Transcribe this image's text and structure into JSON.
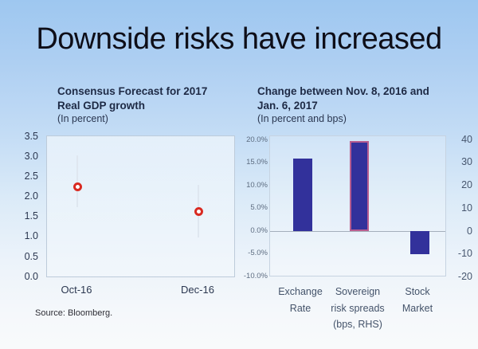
{
  "slide": {
    "title": "Downside risks have increased",
    "source": "Source: Bloomberg."
  },
  "left_chart": {
    "title_line1": "Consensus Forecast for 2017",
    "title_line2": "Real GDP growth",
    "subtitle": "(In percent)",
    "y_ticks": [
      "3.5",
      "3.0",
      "2.5",
      "2.0",
      "1.5",
      "1.0",
      "0.5",
      "0.0"
    ],
    "x_labels": [
      "Oct-16",
      "Dec-16"
    ]
  },
  "right_chart": {
    "title_line1": "Change between Nov. 8, 2016 and",
    "title_line2": "Jan. 6, 2017",
    "subtitle": "(In percent and bps)",
    "lhs_ticks": [
      "20.0%",
      "15.0%",
      "10.0%",
      "5.0%",
      "0.0%",
      "-5.0%",
      "-10.0%"
    ],
    "rhs_ticks": [
      "40",
      "30",
      "20",
      "10",
      "0",
      "-10",
      "-20"
    ],
    "categories": [
      [
        "Exchange",
        "Rate"
      ],
      [
        "Sovereign",
        "risk spreads",
        "(bps, RHS)"
      ],
      [
        "Stock",
        "Market"
      ]
    ]
  },
  "colors": {
    "bar_fill": "#32319b",
    "highlight_border": "#b85d90",
    "marker_red": "#d92a21",
    "background_top": "#9ec7f0",
    "background_bottom": "#f8fafb"
  },
  "chart_data": [
    {
      "type": "scatter",
      "title": "Consensus Forecast for 2017 Real GDP growth",
      "subtitle": "(In percent)",
      "x": [
        "Oct-16",
        "Dec-16"
      ],
      "points": [
        2.25,
        1.65
      ],
      "whisker_high": [
        3.05,
        2.3
      ],
      "whisker_low": [
        1.75,
        1.0
      ],
      "ylim": [
        0.0,
        3.5
      ],
      "y_tick_step": 0.5,
      "marker": "red-open-circle",
      "grid": false,
      "source": "Bloomberg"
    },
    {
      "type": "bar",
      "title": "Change between Nov. 8, 2016 and Jan. 6, 2017",
      "subtitle": "(In percent and bps)",
      "bars": [
        {
          "label": "Exchange Rate",
          "value": 16.0,
          "unit": "percent",
          "axis": "LHS",
          "highlighted": false
        },
        {
          "label": "Sovereign risk spreads (bps, RHS)",
          "value": 39.5,
          "unit": "bps",
          "axis": "RHS",
          "highlighted": true
        },
        {
          "label": "Stock Market",
          "value": -5.0,
          "unit": "percent",
          "axis": "LHS",
          "highlighted": false
        }
      ],
      "lhs_ylim": [
        -10,
        20
      ],
      "rhs_ylim": [
        -20,
        40
      ],
      "grid": false,
      "legend": "none"
    }
  ]
}
